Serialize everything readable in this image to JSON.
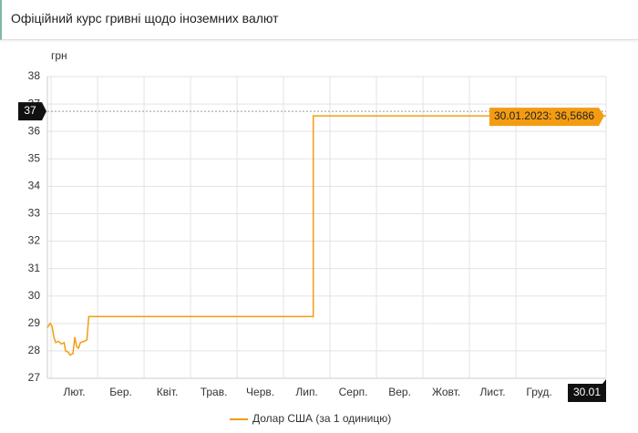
{
  "header": {
    "title": "Офіційний курс гривні щодо іноземних валют"
  },
  "chart_data": {
    "type": "line",
    "y_label": "грн",
    "x": [
      0.92,
      0.98,
      1.02,
      1.06,
      1.1,
      1.16,
      1.22,
      1.28,
      1.31,
      1.37,
      1.41,
      1.47,
      1.51,
      1.55,
      1.59,
      1.63,
      1.71,
      1.77,
      1.81,
      6.64,
      6.64,
      12.94
    ],
    "series": [
      {
        "name": "Долар США (за 1 одиницю)",
        "color": "#f39c12",
        "values": [
          28.85,
          29.0,
          28.9,
          28.5,
          28.3,
          28.35,
          28.25,
          28.3,
          28.0,
          27.95,
          27.85,
          27.9,
          28.5,
          28.15,
          28.1,
          28.3,
          28.35,
          28.4,
          29.25,
          29.25,
          36.5686,
          36.5686
        ]
      }
    ],
    "xlim": [
      0.92,
      12.94
    ],
    "xticks": [
      {
        "value": 1,
        "label": "Лют."
      },
      {
        "value": 2,
        "label": "Бер."
      },
      {
        "value": 3,
        "label": "Квіт."
      },
      {
        "value": 4,
        "label": "Трав."
      },
      {
        "value": 5,
        "label": "Черв."
      },
      {
        "value": 6,
        "label": "Лип."
      },
      {
        "value": 7,
        "label": "Серп."
      },
      {
        "value": 8,
        "label": "Вер."
      },
      {
        "value": 9,
        "label": "Жовт."
      },
      {
        "value": 10,
        "label": "Лист."
      },
      {
        "value": 11,
        "label": "Груд."
      },
      {
        "value": 12.94,
        "label": "30.01"
      }
    ],
    "ylim": [
      27,
      38
    ],
    "yticks": [
      27,
      28,
      29,
      30,
      31,
      32,
      33,
      34,
      35,
      36,
      37,
      38
    ],
    "grid": true,
    "crosshair": {
      "value": 36.5686,
      "label": "37"
    },
    "tooltip": "30.01.2023: 36,5686",
    "legend": "bottom"
  }
}
